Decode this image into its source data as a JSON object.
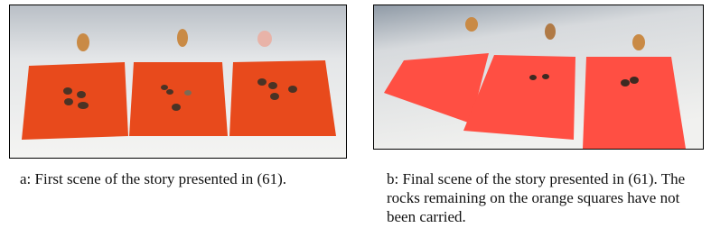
{
  "figures": [
    {
      "caption": "a: First scene of the story presented in (61)."
    },
    {
      "caption": "b: Final scene of the story presented in (61). The rocks remaining on the orange squares have not been carried."
    }
  ]
}
